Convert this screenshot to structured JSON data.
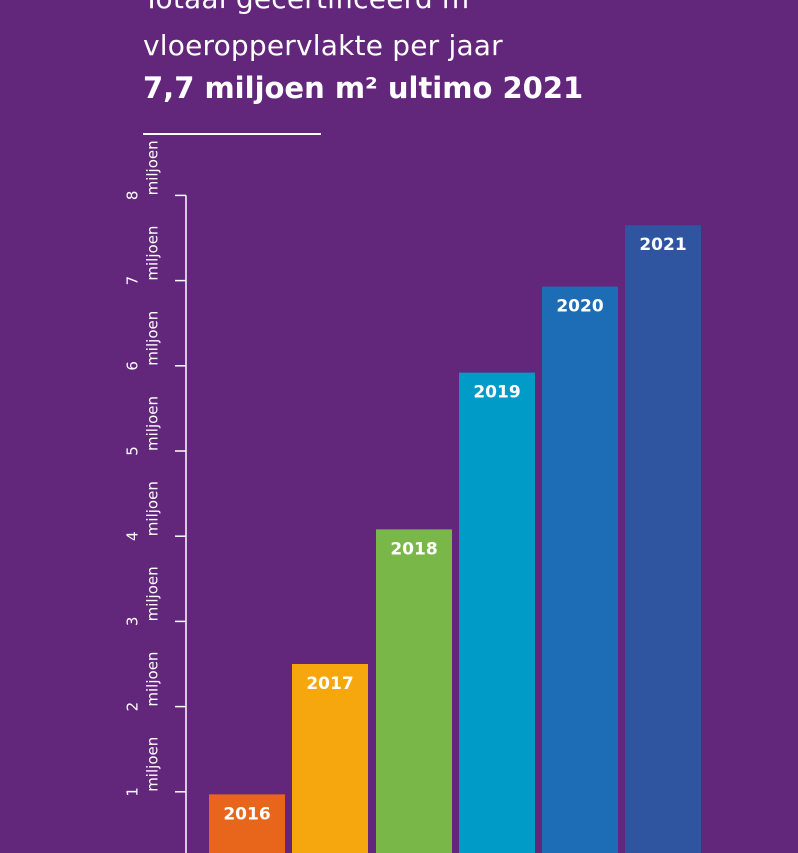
{
  "header": {
    "title_line_1": "Totaal gecertificeerd m",
    "title_line_2": "vloeroppervlakte per jaar",
    "title_line_3": "7,7 miljoen m² ultimo 2021"
  },
  "chart_data": {
    "type": "bar",
    "categories": [
      "2016",
      "2017",
      "2018",
      "2019",
      "2020",
      "2021"
    ],
    "values": [
      0.97,
      2.5,
      4.08,
      5.92,
      6.93,
      7.65
    ],
    "colors": [
      "#e8661b",
      "#f5a70d",
      "#7ab749",
      "#009bc7",
      "#1c6db6",
      "#2f55a1"
    ],
    "y_ticks": [
      {
        "value": 1,
        "label": "1",
        "unit": "miljoen"
      },
      {
        "value": 2,
        "label": "2",
        "unit": "miljoen"
      },
      {
        "value": 3,
        "label": "3",
        "unit": "miljoen"
      },
      {
        "value": 4,
        "label": "4",
        "unit": "miljoen"
      },
      {
        "value": 5,
        "label": "5",
        "unit": "miljoen"
      },
      {
        "value": 6,
        "label": "6",
        "unit": "miljoen"
      },
      {
        "value": 7,
        "label": "7",
        "unit": "miljoen"
      },
      {
        "value": 8,
        "label": "8",
        "unit": "miljoen"
      }
    ],
    "ylim": [
      0,
      8
    ],
    "grid": false,
    "legend": "none"
  }
}
